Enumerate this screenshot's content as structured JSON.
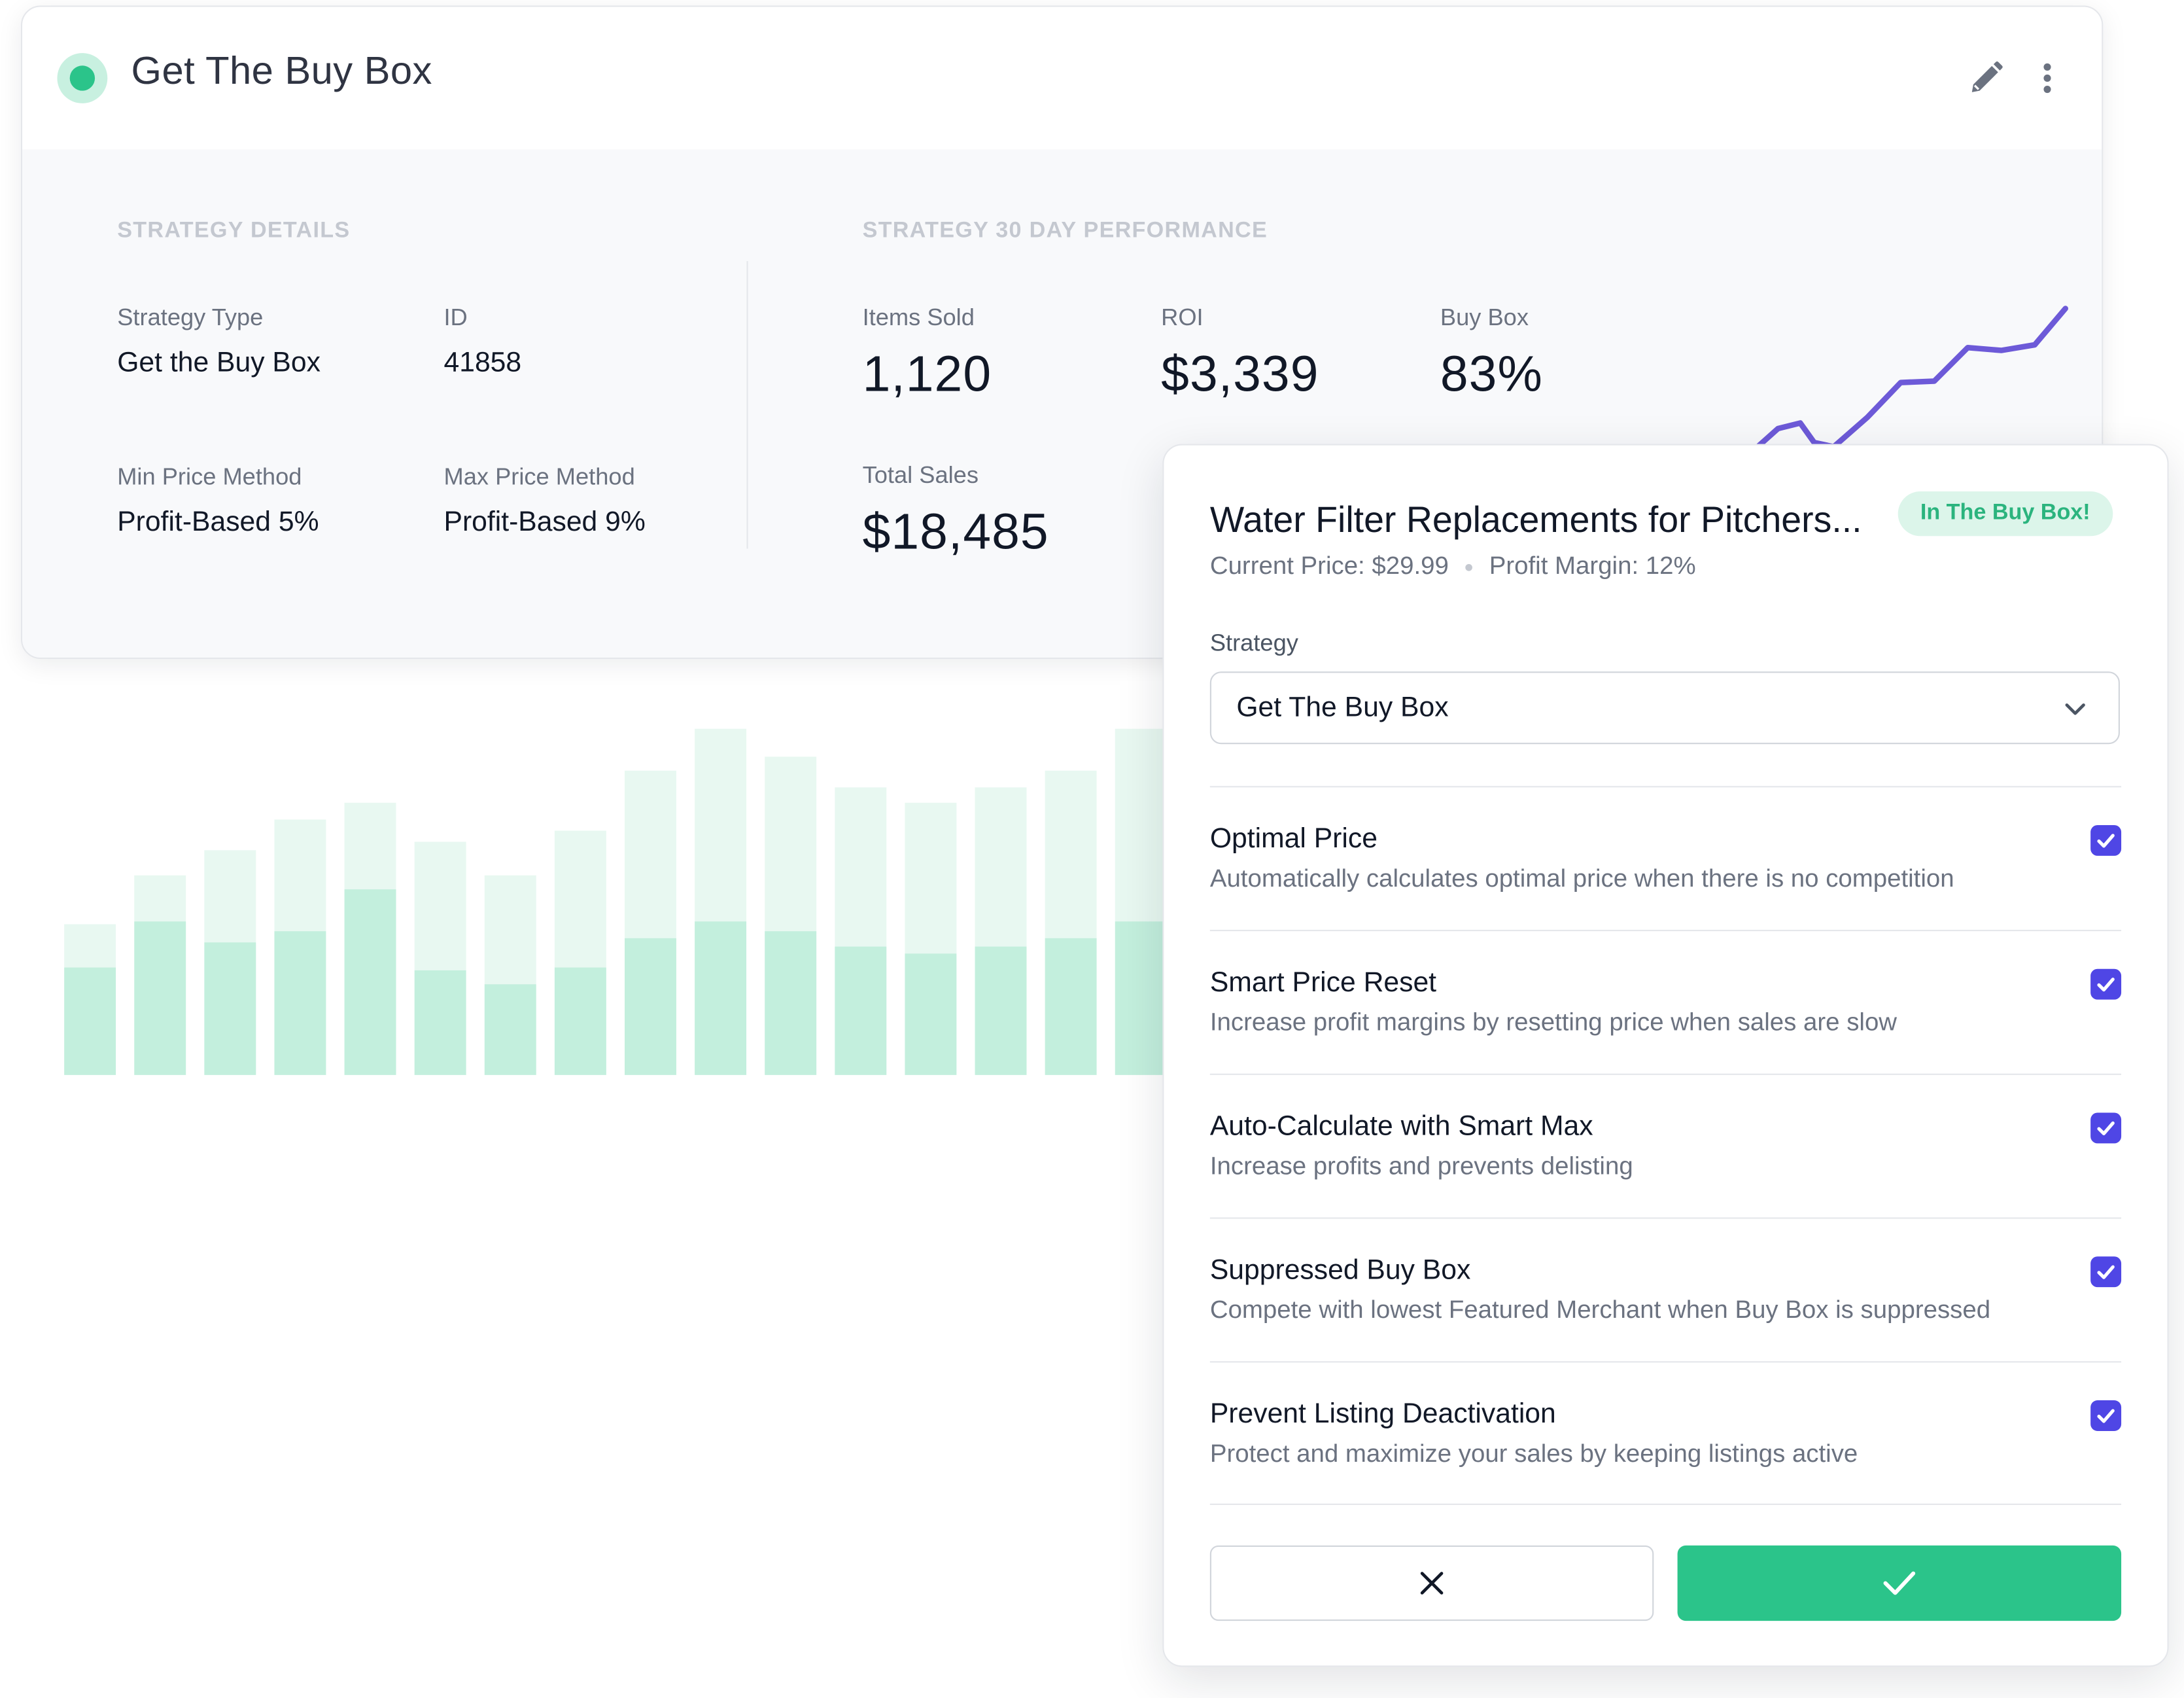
{
  "strategy_card": {
    "title": "Get The Buy Box",
    "status_color": "#2bc48a",
    "details_heading": "STRATEGY DETAILS",
    "performance_heading": "STRATEGY 30 DAY PERFORMANCE",
    "details": {
      "strategy_type_label": "Strategy Type",
      "strategy_type_value": "Get the Buy Box",
      "id_label": "ID",
      "id_value": "41858",
      "min_price_label": "Min Price Method",
      "min_price_value": "Profit-Based 5%",
      "max_price_label": "Max Price Method",
      "max_price_value": "Profit-Based 9%"
    },
    "performance": {
      "items_sold_label": "Items Sold",
      "items_sold_value": "1,120",
      "roi_label": "ROI",
      "roi_value": "$3,339",
      "buy_box_label": "Buy Box",
      "buy_box_value": "83%",
      "total_sales_label": "Total Sales",
      "total_sales_value": "$18,485"
    },
    "sparkline_color": "#6d5ad8"
  },
  "bar_chart": {
    "colors": {
      "top": "#e8f8f1",
      "bottom": "#c3efdd"
    },
    "bars": [
      {
        "total": 108,
        "lower": 77
      },
      {
        "total": 143,
        "lower": 110
      },
      {
        "total": 161,
        "lower": 95
      },
      {
        "total": 183,
        "lower": 103
      },
      {
        "total": 195,
        "lower": 133
      },
      {
        "total": 167,
        "lower": 75
      },
      {
        "total": 143,
        "lower": 65
      },
      {
        "total": 175,
        "lower": 77
      },
      {
        "total": 218,
        "lower": 98
      },
      {
        "total": 248,
        "lower": 110
      },
      {
        "total": 228,
        "lower": 103
      },
      {
        "total": 206,
        "lower": 92
      },
      {
        "total": 195,
        "lower": 87
      },
      {
        "total": 206,
        "lower": 92
      },
      {
        "total": 218,
        "lower": 98
      },
      {
        "total": 248,
        "lower": 110
      }
    ]
  },
  "panel": {
    "product_title": "Water Filter Replacements for Pitchers...",
    "badge": "In The Buy Box!",
    "current_price": "Current Price: $29.99",
    "profit_margin": "Profit Margin: 12%",
    "strategy_label": "Strategy",
    "strategy_selected": "Get The Buy Box",
    "options": [
      {
        "title": "Optimal Price",
        "description": "Automatically calculates optimal price when there is no competition",
        "checked": true
      },
      {
        "title": "Smart Price Reset",
        "description": "Increase profit margins by resetting price when sales are slow",
        "checked": true
      },
      {
        "title": "Auto-Calculate with Smart Max",
        "description": "Increase profits and prevents delisting",
        "checked": true
      },
      {
        "title": "Suppressed Buy Box",
        "description": "Compete with lowest Featured Merchant when Buy Box is suppressed",
        "checked": true
      },
      {
        "title": "Prevent Listing Deactivation",
        "description": "Protect and maximize your sales by keeping listings active",
        "checked": true
      }
    ],
    "checkbox_color": "#4f46e5",
    "confirm_color": "#2bc48a"
  }
}
